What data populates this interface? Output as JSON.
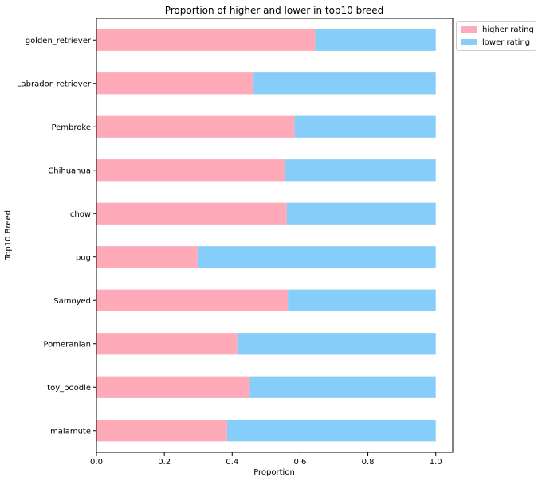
{
  "chart_data": {
    "type": "bar",
    "orientation": "horizontal",
    "stacked": true,
    "title": "Proportion of higher and lower in top10 breed",
    "xlabel": "Proportion",
    "ylabel": "Top10 Breed",
    "xlim": [
      0.0,
      1.05
    ],
    "xticks": [
      "0.0",
      "0.2",
      "0.4",
      "0.6",
      "0.8",
      "1.0"
    ],
    "categories": [
      "golden_retriever",
      "Labrador_retriever",
      "Pembroke",
      "Chihuahua",
      "chow",
      "pug",
      "Samoyed",
      "Pomeranian",
      "toy_poodle",
      "malamute"
    ],
    "series": [
      {
        "name": "higher rating",
        "color": "#ffaab8",
        "values": [
          0.645,
          0.463,
          0.584,
          0.556,
          0.561,
          0.298,
          0.564,
          0.415,
          0.452,
          0.385
        ]
      },
      {
        "name": "lower rating",
        "color": "#87cdfa",
        "values": [
          0.355,
          0.537,
          0.416,
          0.444,
          0.439,
          0.702,
          0.436,
          0.585,
          0.548,
          0.615
        ]
      }
    ],
    "legend_position": "upper-right, outside plot",
    "grid": false
  }
}
